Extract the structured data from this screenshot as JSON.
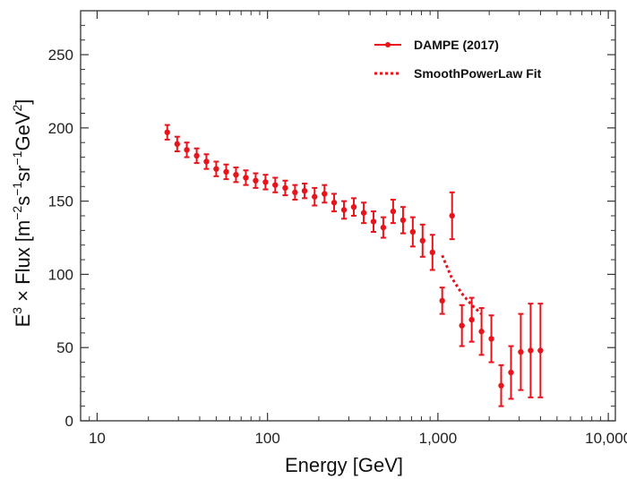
{
  "chart_data": {
    "type": "scatter",
    "title": "",
    "xlabel": "Energy [GeV]",
    "ylabel_parts": {
      "e": "E",
      "e_sup": "3",
      "times_flux": " × Flux [m",
      "m_sup": "−2",
      "s": "s",
      "s_sup": "−1",
      "sr": "sr",
      "sr_sup": "−1",
      "gev": "GeV",
      "gev_sup": "2",
      "close": "]"
    },
    "x_scale": "log",
    "xlim": [
      8,
      11000
    ],
    "ylim": [
      0,
      280
    ],
    "x_ticks": [
      10,
      100,
      1000,
      10000
    ],
    "x_tick_labels": [
      "10",
      "100",
      "1,000",
      "10,000"
    ],
    "y_ticks": [
      0,
      50,
      100,
      150,
      200,
      250
    ],
    "y_tick_labels": [
      "0",
      "50",
      "100",
      "150",
      "200",
      "250"
    ],
    "grid": false,
    "legend_position": "top-right",
    "colors": {
      "series": "#e8141c",
      "axis": "#333333"
    },
    "series": [
      {
        "name": "DAMPE (2017)",
        "style": "markers-errorbars",
        "x": [
          25.8,
          29.5,
          33.6,
          38.4,
          43.8,
          50.0,
          57.2,
          65.3,
          74.6,
          85.2,
          97.3,
          111,
          127,
          145,
          165,
          189,
          216,
          246,
          281,
          321,
          367,
          419,
          478,
          546,
          624,
          712,
          813,
          929,
          1060,
          1211,
          1383,
          1579,
          1803,
          2059,
          2351,
          2685,
          3066,
          3501,
          3998
        ],
        "y": [
          197,
          189,
          185,
          181,
          177,
          172,
          170,
          168,
          166,
          164,
          163,
          161,
          159,
          156,
          157,
          153,
          155,
          149,
          144,
          146,
          142,
          136,
          132,
          143,
          137,
          129,
          123,
          115,
          82,
          140,
          65,
          69,
          61,
          56,
          24,
          33,
          47,
          48,
          48
        ],
        "yerr": [
          5,
          5,
          5,
          5,
          5,
          5,
          5,
          5,
          5,
          5,
          5,
          5,
          5,
          5,
          5,
          6,
          6,
          6,
          6,
          6,
          7,
          7,
          7,
          8,
          9,
          10,
          11,
          12,
          9,
          16,
          14,
          15,
          16,
          16,
          14,
          18,
          26,
          32,
          32
        ]
      },
      {
        "name": "SmoothPowerLaw Fit",
        "style": "dotted-line",
        "x": [
          1060,
          1200,
          1380,
          1580,
          1800
        ],
        "y": [
          113,
          98,
          87,
          79,
          73
        ]
      }
    ]
  }
}
